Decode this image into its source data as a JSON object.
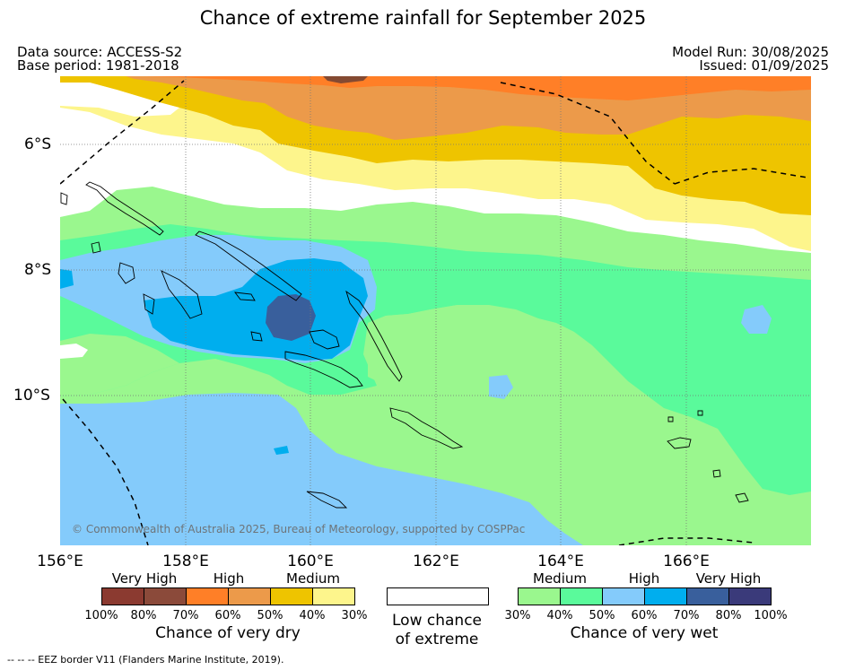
{
  "title": "Chance of extreme rainfall for September 2025",
  "data_source": "Data source: ACCESS-S2",
  "base_period": "Base period: 1981-2018",
  "model_run": "Model Run: 30/08/2025",
  "issued": "Issued: 01/09/2025",
  "copyright": "© Commonwealth of Australia 2025, Bureau of Meteorology, supported by COSPPac",
  "footnote": "--  --  -- EEZ border V11 (Flanders Marine Institute, 2019).",
  "lat_labels": [
    "6°S",
    "8°S",
    "10°S"
  ],
  "lon_labels": [
    "156°E",
    "158°E",
    "160°E",
    "162°E",
    "164°E",
    "166°E"
  ],
  "legend_dry": {
    "headings": [
      "Very High",
      "High",
      "Medium"
    ],
    "colors": [
      "#8b3a30",
      "#8b4a3a",
      "#ff7f27",
      "#ec9a4a",
      "#eec400",
      "#fdf58c"
    ],
    "ticks": [
      "100%",
      "80%",
      "70%",
      "60%",
      "50%",
      "40%",
      "30%"
    ],
    "title": "Chance of very dry"
  },
  "legend_low": {
    "color": "#ffffff",
    "title_line1": "Low chance",
    "title_line2": "of extreme"
  },
  "legend_wet": {
    "headings": [
      "Medium",
      "High",
      "Very High"
    ],
    "colors": [
      "#9af78e",
      "#5afa9b",
      "#84cbfb",
      "#00aeee",
      "#395f9c",
      "#3a3a7a"
    ],
    "ticks": [
      "30%",
      "40%",
      "50%",
      "60%",
      "70%",
      "80%",
      "100%"
    ],
    "title": "Chance of very wet"
  },
  "map_colors": {
    "dry_orange": "#ff7f27",
    "dry_brown": "#844a32",
    "dry_light_orange": "#ec9a4a",
    "dry_yellow": "#eec400",
    "dry_pale": "#fdf58c",
    "wet_light_green": "#9af78e",
    "wet_green": "#5afa9b",
    "wet_light_blue": "#84cbfb",
    "wet_blue": "#00aeee",
    "wet_dark_blue": "#395f9c"
  }
}
